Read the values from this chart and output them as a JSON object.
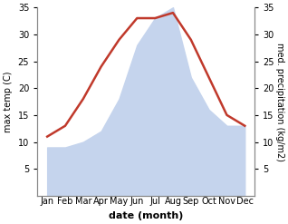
{
  "months": [
    "Jan",
    "Feb",
    "Mar",
    "Apr",
    "May",
    "Jun",
    "Jul",
    "Aug",
    "Sep",
    "Oct",
    "Nov",
    "Dec"
  ],
  "temp": [
    11,
    13,
    18,
    24,
    29,
    33,
    33,
    34,
    29,
    22,
    15,
    13
  ],
  "precip": [
    9,
    9,
    10,
    12,
    18,
    28,
    33,
    35,
    22,
    16,
    13,
    13
  ],
  "temp_color": "#c0392b",
  "precip_color": "#c5d4ed",
  "ylim_left": [
    0,
    35
  ],
  "ylim_right": [
    0,
    35
  ],
  "yticks_left": [
    5,
    10,
    15,
    20,
    25,
    30,
    35
  ],
  "yticks_right": [
    5,
    10,
    15,
    20,
    25,
    30,
    35
  ],
  "ylabel_left": "max temp (C)",
  "ylabel_right": "med. precipitation (kg/m2)",
  "xlabel": "date (month)",
  "bg_color": "#ffffff",
  "spine_color": "#888888",
  "label_fontsize": 7,
  "tick_fontsize": 7,
  "xlabel_fontsize": 8,
  "temp_linewidth": 1.8,
  "fig_width": 3.18,
  "fig_height": 2.47,
  "dpi": 100
}
